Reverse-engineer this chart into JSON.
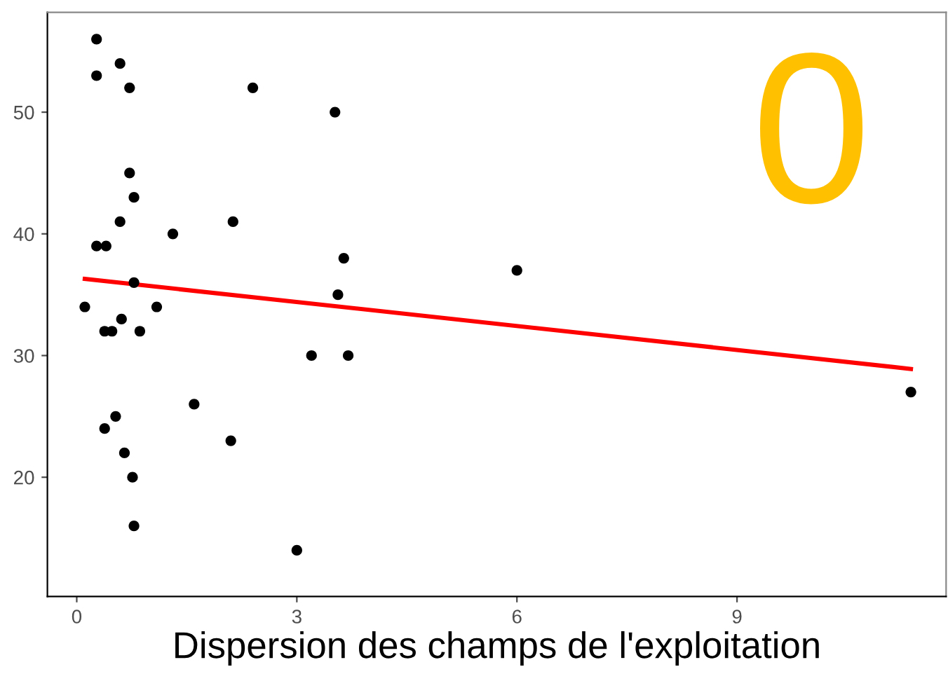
{
  "chart_data": {
    "type": "scatter",
    "xlabel": "Dispersion des champs de l'exploitation",
    "annotations": [
      "0"
    ],
    "xlim": [
      -0.4,
      11.85
    ],
    "ylim": [
      10.2,
      58.2
    ],
    "xticks": [
      0,
      3,
      6,
      9
    ],
    "yticks": [
      20,
      30,
      40,
      50
    ],
    "grid": false,
    "series": [
      {
        "color": "#000000",
        "marker": "circle",
        "x": [
          0.27,
          0.27,
          0.59,
          0.72,
          2.4,
          3.52,
          0.72,
          0.78,
          0.59,
          1.31,
          2.13,
          0.27,
          0.4,
          3.64,
          6.0,
          0.78,
          3.56,
          0.11,
          1.09,
          0.61,
          0.38,
          0.48,
          0.86,
          3.2,
          3.7,
          11.37,
          1.6,
          0.53,
          0.38,
          2.1,
          0.65,
          0.76,
          0.78,
          3.0
        ],
        "values": [
          56,
          53,
          54,
          52,
          52,
          50,
          45,
          43,
          41,
          40,
          41,
          39,
          39,
          38,
          37,
          36,
          35,
          34,
          34,
          33,
          32,
          32,
          32,
          30,
          30,
          27,
          26,
          25,
          24,
          23,
          22,
          20,
          16,
          14
        ]
      },
      {
        "type": "line",
        "color": "#ff0000",
        "x": [
          0.11,
          11.37
        ],
        "values": [
          36.3,
          28.9
        ]
      }
    ]
  }
}
